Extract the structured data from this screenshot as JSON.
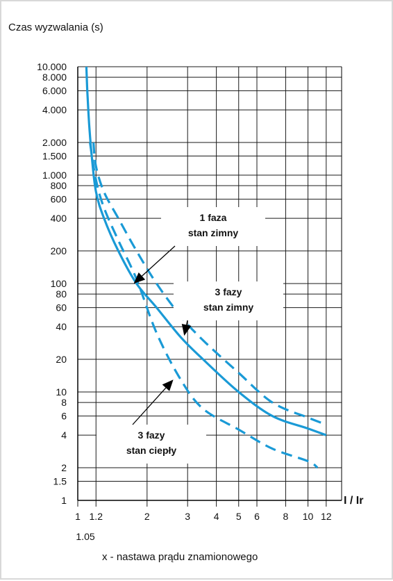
{
  "chart_data": {
    "type": "line",
    "ylabel": "Czas wyzwalania (s)",
    "xlabel": "x - nastawa prądu znamionowego",
    "xunit": "I / Ir",
    "x_scale": "log",
    "y_scale": "log",
    "xlim": [
      1,
      14
    ],
    "ylim": [
      1,
      10000
    ],
    "grid": true,
    "x_ticks": [
      {
        "value": 1,
        "label": "1"
      },
      {
        "value": 1.2,
        "label": "1.2"
      },
      {
        "value": 2,
        "label": "2"
      },
      {
        "value": 3,
        "label": "3"
      },
      {
        "value": 4,
        "label": "4"
      },
      {
        "value": 5,
        "label": "5"
      },
      {
        "value": 6,
        "label": "6"
      },
      {
        "value": 8,
        "label": "8"
      },
      {
        "value": 10,
        "label": "10"
      },
      {
        "value": 12,
        "label": "12"
      }
    ],
    "x_extra_label": {
      "value": 1.05,
      "label": "1.05"
    },
    "y_ticks": [
      {
        "value": 1,
        "label": "1"
      },
      {
        "value": 1.5,
        "label": "1.5"
      },
      {
        "value": 2,
        "label": "2"
      },
      {
        "value": 4,
        "label": "4"
      },
      {
        "value": 6,
        "label": "6"
      },
      {
        "value": 8,
        "label": "8"
      },
      {
        "value": 10,
        "label": "10"
      },
      {
        "value": 20,
        "label": "20"
      },
      {
        "value": 40,
        "label": "40"
      },
      {
        "value": 60,
        "label": "60"
      },
      {
        "value": 80,
        "label": "80"
      },
      {
        "value": 100,
        "label": "100"
      },
      {
        "value": 200,
        "label": "200"
      },
      {
        "value": 400,
        "label": "400"
      },
      {
        "value": 600,
        "label": "600"
      },
      {
        "value": 800,
        "label": "800"
      },
      {
        "value": 1000,
        "label": "1.000"
      },
      {
        "value": 1500,
        "label": "1.500"
      },
      {
        "value": 2000,
        "label": "2.000"
      },
      {
        "value": 4000,
        "label": "4.000"
      },
      {
        "value": 6000,
        "label": "6.000"
      },
      {
        "value": 8000,
        "label": "8.000"
      },
      {
        "value": 10000,
        "label": "10.000"
      }
    ],
    "series": [
      {
        "style": "solid",
        "color": "#1a9ad6",
        "points": [
          [
            1.09,
            10000
          ],
          [
            1.1,
            6000
          ],
          [
            1.12,
            3000
          ],
          [
            1.15,
            1500
          ],
          [
            1.2,
            700
          ],
          [
            1.3,
            400
          ],
          [
            1.5,
            200
          ],
          [
            1.8,
            100
          ],
          [
            2.2,
            60
          ],
          [
            2.8,
            32
          ],
          [
            3.5,
            20
          ],
          [
            5,
            10
          ],
          [
            7,
            6
          ],
          [
            10,
            4.6
          ],
          [
            12,
            4
          ]
        ]
      },
      {
        "style": "dashed",
        "color": "#1a9ad6",
        "points": [
          [
            1.17,
            2000
          ],
          [
            1.2,
            1200
          ],
          [
            1.3,
            700
          ],
          [
            1.5,
            400
          ],
          [
            1.8,
            200
          ],
          [
            2.2,
            100
          ],
          [
            2.8,
            50
          ],
          [
            3.5,
            30
          ],
          [
            5,
            15
          ],
          [
            7,
            8
          ],
          [
            10,
            5.8
          ],
          [
            12,
            5
          ]
        ]
      },
      {
        "style": "dashed",
        "color": "#1a9ad6",
        "points": [
          [
            1.13,
            2000
          ],
          [
            1.2,
            900
          ],
          [
            1.3,
            500
          ],
          [
            1.5,
            250
          ],
          [
            1.8,
            110
          ],
          [
            2.2,
            35
          ],
          [
            2.8,
            13
          ],
          [
            3.5,
            7
          ],
          [
            5,
            4.5
          ],
          [
            7,
            3
          ],
          [
            10,
            2.3
          ],
          [
            11,
            2
          ]
        ]
      }
    ],
    "annotations": [
      {
        "lines": [
          "1 faza",
          "stan zimny"
        ],
        "target": [
          1.75,
          100
        ]
      },
      {
        "lines": [
          "3 fazy",
          "stan zimny"
        ],
        "target": [
          2.9,
          33
        ]
      },
      {
        "lines": [
          "3 fazy",
          "stan ciepły"
        ],
        "target": [
          2.6,
          13
        ]
      }
    ]
  }
}
